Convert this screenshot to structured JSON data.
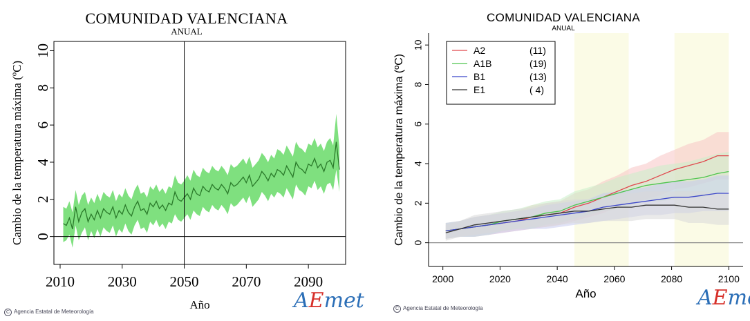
{
  "chart_data": [
    {
      "type": "area",
      "title": "COMUNIDAD VALENCIANA",
      "subtitle": "ANUAL",
      "xlabel": "Año",
      "ylabel": "Cambio de la temperatura máxima (ºC)",
      "xlim": [
        2008,
        2102
      ],
      "ylim": [
        -1.5,
        10.5
      ],
      "xticks": [
        "2010",
        "2030",
        "2050",
        "2070",
        "2090"
      ],
      "xtick_values": [
        2010,
        2030,
        2050,
        2070,
        2090
      ],
      "yticks": [
        "0",
        "2",
        "4",
        "6",
        "8",
        "10"
      ],
      "ytick_values": [
        0,
        2,
        4,
        6,
        8,
        10
      ],
      "vline": 2050,
      "hline": 0,
      "grid": false,
      "series": [
        {
          "color": "#2a7a2a",
          "band_color": "#7fe07f",
          "x": [
            2011,
            2012,
            2013,
            2014,
            2015,
            2016,
            2017,
            2018,
            2019,
            2020,
            2021,
            2022,
            2023,
            2024,
            2025,
            2026,
            2027,
            2028,
            2029,
            2030,
            2031,
            2032,
            2033,
            2034,
            2035,
            2036,
            2037,
            2038,
            2039,
            2040,
            2041,
            2042,
            2043,
            2044,
            2045,
            2046,
            2047,
            2048,
            2049,
            2050,
            2051,
            2052,
            2053,
            2054,
            2055,
            2056,
            2057,
            2058,
            2059,
            2060,
            2061,
            2062,
            2063,
            2064,
            2065,
            2066,
            2067,
            2068,
            2069,
            2070,
            2071,
            2072,
            2073,
            2074,
            2075,
            2076,
            2077,
            2078,
            2079,
            2080,
            2081,
            2082,
            2083,
            2084,
            2085,
            2086,
            2087,
            2088,
            2089,
            2090,
            2091,
            2092,
            2093,
            2094,
            2095,
            2096,
            2097,
            2098,
            2099,
            2100
          ],
          "mean": [
            0.7,
            0.6,
            1.0,
            0.4,
            1.6,
            0.8,
            1.3,
            1.5,
            0.8,
            1.2,
            0.9,
            1.4,
            1.0,
            1.5,
            1.3,
            1.2,
            1.6,
            1.0,
            1.4,
            1.2,
            1.7,
            1.3,
            1.1,
            1.6,
            1.9,
            1.4,
            1.5,
            1.2,
            1.8,
            1.6,
            1.9,
            1.5,
            1.7,
            1.4,
            1.8,
            1.7,
            2.4,
            2.0,
            1.9,
            2.1,
            2.3,
            2.0,
            2.6,
            2.3,
            2.2,
            2.7,
            2.5,
            2.4,
            2.8,
            2.6,
            2.5,
            2.8,
            2.6,
            2.3,
            2.9,
            2.7,
            2.8,
            3.0,
            3.2,
            2.9,
            3.3,
            2.7,
            2.9,
            3.1,
            3.5,
            3.3,
            3.0,
            3.4,
            3.2,
            3.6,
            3.5,
            3.3,
            3.8,
            3.5,
            3.2,
            4.0,
            3.7,
            3.6,
            3.4,
            3.9,
            3.8,
            4.2,
            3.7,
            3.9,
            3.5,
            4.0,
            4.1,
            3.7,
            5.1,
            3.6
          ],
          "lower": [
            -0.3,
            -0.2,
            0.1,
            -0.6,
            0.6,
            -0.2,
            0.2,
            0.5,
            -0.2,
            0.3,
            -0.1,
            0.4,
            0.0,
            0.5,
            0.3,
            0.2,
            0.6,
            0.0,
            0.4,
            0.2,
            0.7,
            0.3,
            0.1,
            0.6,
            0.9,
            0.4,
            0.5,
            0.2,
            0.8,
            0.6,
            0.9,
            0.5,
            0.7,
            0.4,
            0.8,
            0.7,
            1.2,
            0.9,
            0.8,
            1.0,
            1.2,
            0.9,
            1.4,
            1.2,
            1.1,
            1.6,
            1.4,
            1.3,
            1.7,
            1.5,
            1.4,
            1.7,
            1.5,
            1.2,
            1.8,
            1.6,
            1.7,
            1.9,
            2.1,
            1.8,
            2.2,
            1.6,
            1.8,
            2.0,
            2.4,
            2.2,
            1.9,
            2.3,
            2.1,
            2.4,
            2.3,
            2.1,
            2.6,
            2.3,
            2.0,
            2.8,
            2.5,
            2.4,
            2.2,
            2.7,
            2.6,
            3.0,
            2.5,
            2.7,
            2.3,
            2.8,
            2.9,
            2.5,
            3.6,
            2.4
          ],
          "upper": [
            1.6,
            1.5,
            1.9,
            1.3,
            2.5,
            1.7,
            2.2,
            2.4,
            1.7,
            2.1,
            1.8,
            2.3,
            1.9,
            2.4,
            2.2,
            2.1,
            2.5,
            1.9,
            2.3,
            2.1,
            2.6,
            2.2,
            2.0,
            2.5,
            2.8,
            2.3,
            2.4,
            2.1,
            2.7,
            2.5,
            2.8,
            2.4,
            2.6,
            2.3,
            2.7,
            2.6,
            3.3,
            2.9,
            2.8,
            3.0,
            3.3,
            3.0,
            3.6,
            3.3,
            3.2,
            3.7,
            3.5,
            3.4,
            3.8,
            3.6,
            3.5,
            3.8,
            3.6,
            3.3,
            3.9,
            3.7,
            3.8,
            4.0,
            4.2,
            3.9,
            4.3,
            3.7,
            3.9,
            4.1,
            4.5,
            4.3,
            4.0,
            4.4,
            4.2,
            4.7,
            4.6,
            4.4,
            4.9,
            4.6,
            4.3,
            5.1,
            4.8,
            4.7,
            4.5,
            5.0,
            4.9,
            5.3,
            4.8,
            5.0,
            4.6,
            5.1,
            5.3,
            4.9,
            6.6,
            4.8
          ]
        }
      ]
    },
    {
      "type": "line",
      "title": "COMUNIDAD VALENCIANA",
      "subtitle": "ANUAL",
      "xlabel": "Año",
      "ylabel": "Cambio de la temperatura máxima (ºC)",
      "xlim": [
        1995,
        2105
      ],
      "ylim": [
        -1.2,
        10.6
      ],
      "xticks": [
        "2000",
        "2020",
        "2040",
        "2060",
        "2080",
        "2100"
      ],
      "xtick_values": [
        2000,
        2020,
        2040,
        2060,
        2080,
        2100
      ],
      "yticks": [
        "0",
        "2",
        "4",
        "6",
        "8",
        "10"
      ],
      "ytick_values": [
        0,
        2,
        4,
        6,
        8,
        10
      ],
      "hline": 0,
      "highlight_periods": [
        [
          2046,
          2065
        ],
        [
          2081,
          2100
        ]
      ],
      "highlight_color": "#fbfbe6",
      "legend": {
        "position": "top-left",
        "entries": [
          {
            "label": "A2",
            "count": "(11)",
            "color": "#e0474c"
          },
          {
            "label": "A1B",
            "count": "(19)",
            "color": "#4cc44c"
          },
          {
            "label": "B1",
            "count": "(13)",
            "color": "#3b46c9"
          },
          {
            "label": "E1",
            "count": "( 4)",
            "color": "#333333"
          }
        ]
      },
      "years_2001_2100_step5": [
        2001,
        2006,
        2011,
        2016,
        2021,
        2026,
        2031,
        2036,
        2041,
        2046,
        2051,
        2056,
        2061,
        2066,
        2071,
        2076,
        2081,
        2086,
        2091,
        2096,
        2100
      ],
      "series": [
        {
          "name": "A2",
          "color": "#e0474c",
          "band_color": "#f7c4c4",
          "mean": [
            0.6,
            0.7,
            0.8,
            0.9,
            1.0,
            1.1,
            1.3,
            1.4,
            1.5,
            1.8,
            2.0,
            2.3,
            2.6,
            2.9,
            3.1,
            3.4,
            3.7,
            3.9,
            4.1,
            4.4,
            4.4
          ],
          "spread": [
            0.4,
            0.4,
            0.5,
            0.5,
            0.5,
            0.5,
            0.6,
            0.6,
            0.6,
            0.7,
            0.7,
            0.8,
            0.8,
            0.9,
            0.9,
            1.0,
            1.0,
            1.1,
            1.1,
            1.2,
            1.2
          ]
        },
        {
          "name": "A1B",
          "color": "#4cc44c",
          "band_color": "#c8efc8",
          "mean": [
            0.6,
            0.7,
            0.8,
            0.9,
            1.1,
            1.2,
            1.3,
            1.5,
            1.6,
            1.9,
            2.1,
            2.3,
            2.5,
            2.7,
            2.9,
            3.0,
            3.1,
            3.2,
            3.3,
            3.5,
            3.6
          ],
          "spread": [
            0.4,
            0.4,
            0.5,
            0.5,
            0.5,
            0.5,
            0.6,
            0.6,
            0.6,
            0.7,
            0.7,
            0.7,
            0.8,
            0.8,
            0.8,
            0.9,
            0.9,
            0.9,
            1.0,
            1.0,
            1.0
          ]
        },
        {
          "name": "B1",
          "color": "#3b46c9",
          "band_color": "#c6cbef",
          "mean": [
            0.6,
            0.7,
            0.8,
            0.9,
            1.0,
            1.1,
            1.2,
            1.3,
            1.4,
            1.5,
            1.6,
            1.8,
            1.9,
            2.0,
            2.1,
            2.2,
            2.3,
            2.3,
            2.4,
            2.5,
            2.5
          ],
          "spread": [
            0.4,
            0.4,
            0.5,
            0.5,
            0.5,
            0.5,
            0.5,
            0.6,
            0.6,
            0.6,
            0.6,
            0.7,
            0.7,
            0.7,
            0.7,
            0.8,
            0.8,
            0.8,
            0.8,
            0.9,
            0.9
          ]
        },
        {
          "name": "E1",
          "color": "#333333",
          "band_color": "#d8d8d8",
          "mean": [
            0.5,
            0.7,
            0.9,
            1.0,
            1.1,
            1.2,
            1.3,
            1.4,
            1.5,
            1.6,
            1.6,
            1.7,
            1.8,
            1.8,
            1.9,
            1.9,
            1.9,
            1.8,
            1.8,
            1.7,
            1.7
          ],
          "spread": [
            0.4,
            0.4,
            0.5,
            0.5,
            0.5,
            0.5,
            0.5,
            0.6,
            0.6,
            0.6,
            0.6,
            0.6,
            0.7,
            0.7,
            0.7,
            0.7,
            0.7,
            0.8,
            0.8,
            0.8,
            0.8
          ]
        }
      ]
    }
  ],
  "credit_text": "Agencia Estatal de Meteorología",
  "logo": {
    "a": "A",
    "e": "E",
    "m": "met"
  }
}
